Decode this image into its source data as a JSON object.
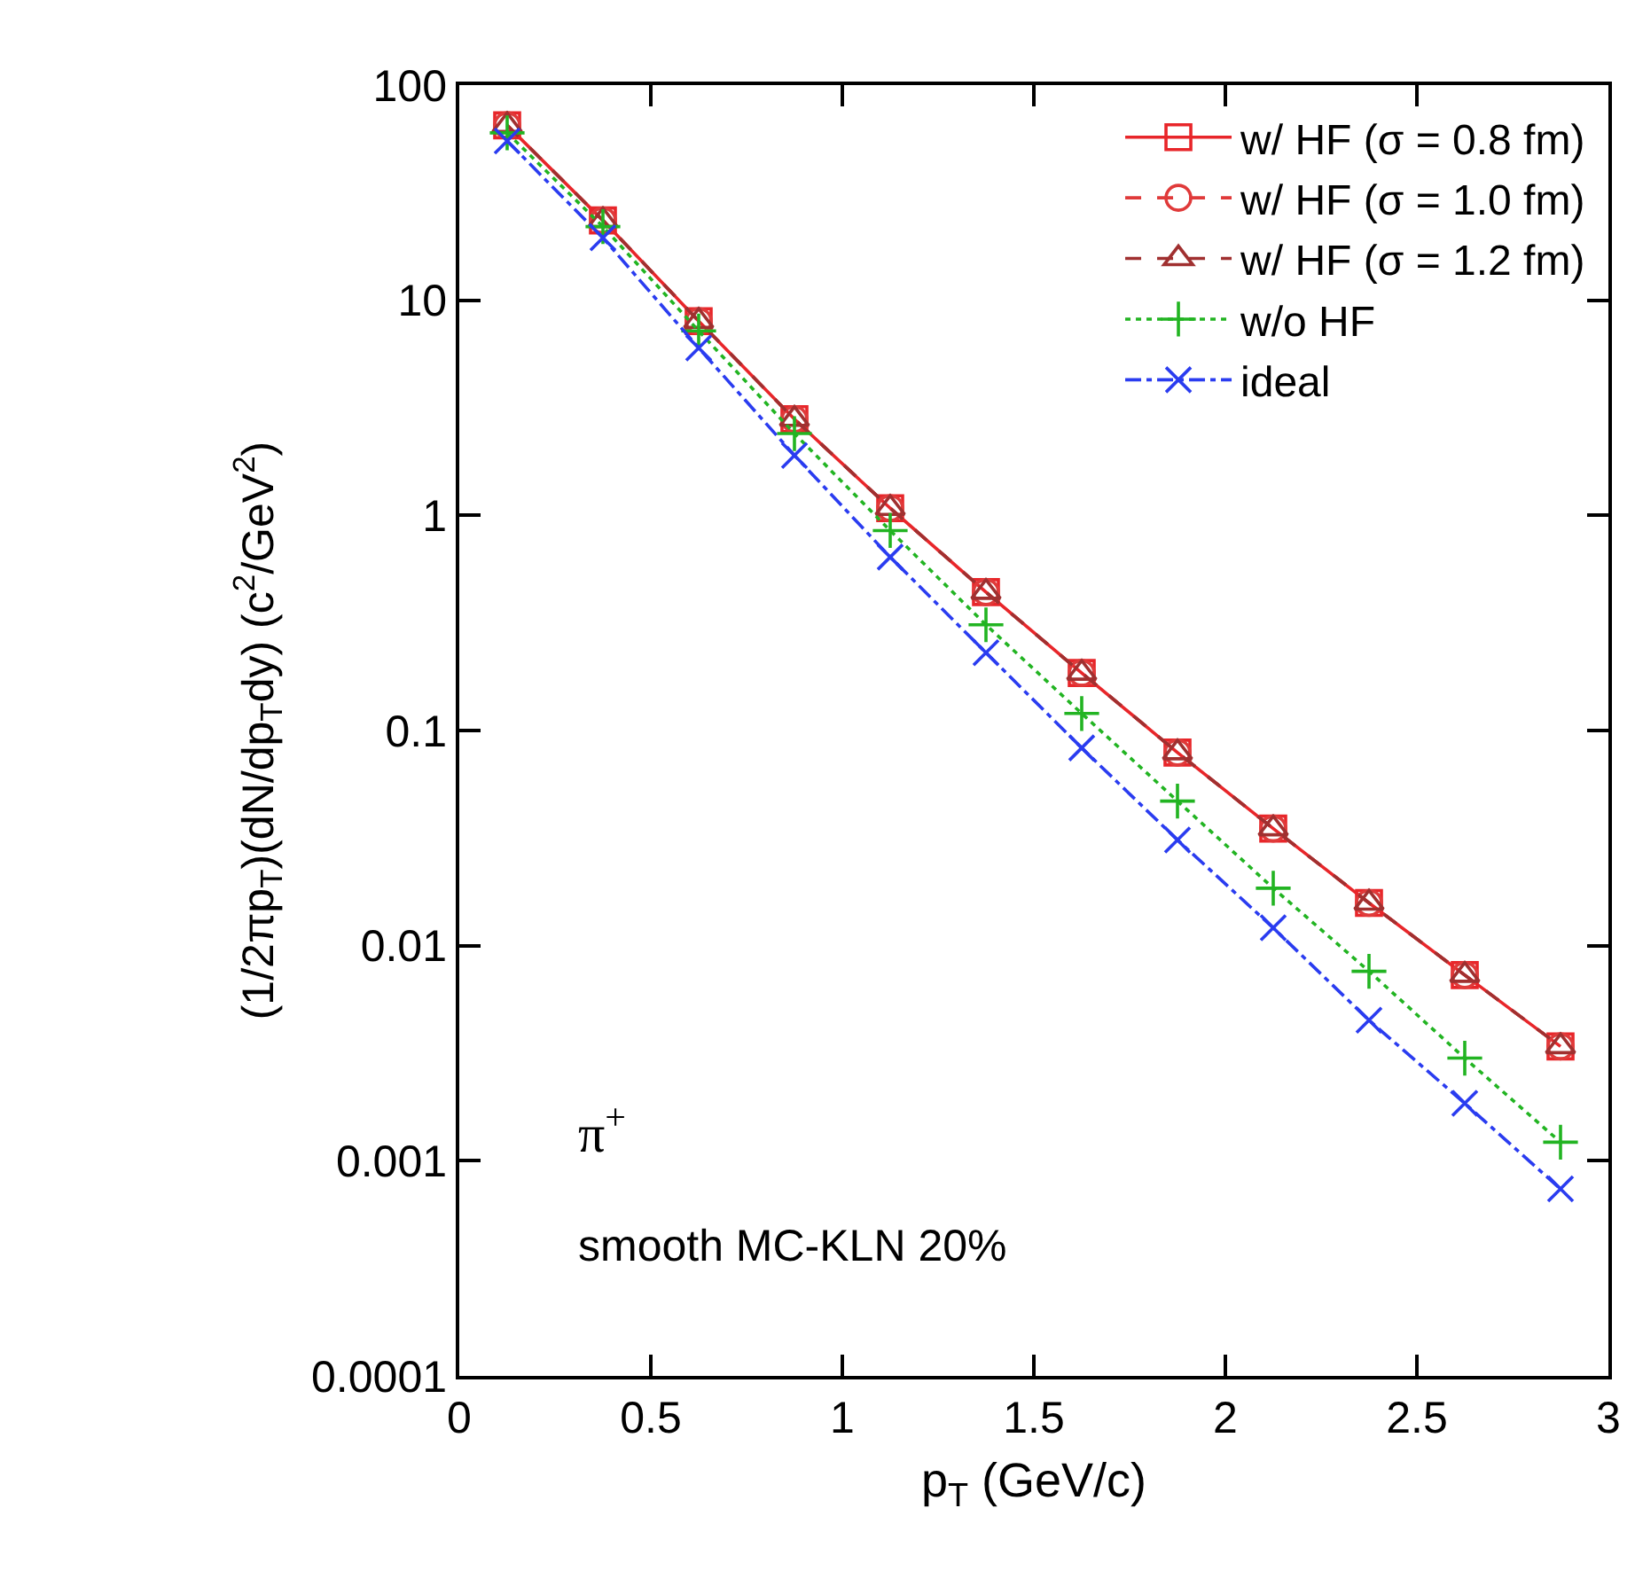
{
  "chart_data": {
    "type": "line",
    "xlabel": "p$_{T}$ (GeV/c)",
    "ylabel": "(1/2πp$_{T}$)(dN/dp$_{T}$dy) (c$^{2}$/GeV$^{2}$)",
    "x": [
      0.125,
      0.375,
      0.625,
      0.875,
      1.125,
      1.375,
      1.625,
      1.875,
      2.125,
      2.375,
      2.625,
      2.875
    ],
    "series": [
      {
        "name": "w/ HF (σ = 0.8 fm)",
        "color": "#e8262a",
        "marker": "square",
        "line_style": "solid",
        "values": [
          65,
          23.5,
          8,
          2.8,
          1.08,
          0.44,
          0.185,
          0.079,
          0.035,
          0.0158,
          0.0073,
          0.0034
        ]
      },
      {
        "name": "w/ HF (σ = 1.0 fm)",
        "color": "#e03a3a",
        "marker": "circle",
        "line_style": "dashed",
        "values": [
          65,
          23.5,
          8,
          2.8,
          1.08,
          0.44,
          0.185,
          0.079,
          0.035,
          0.0158,
          0.0073,
          0.0034
        ]
      },
      {
        "name": "w/ HF (σ = 1.2 fm)",
        "color": "#a03030",
        "marker": "triangle",
        "line_style": "dashed",
        "values": [
          65,
          23.5,
          8,
          2.8,
          1.08,
          0.44,
          0.185,
          0.079,
          0.035,
          0.0158,
          0.0073,
          0.0034
        ]
      },
      {
        "name": "w/o HF",
        "color": "#22b422",
        "marker": "cross",
        "line_style": "dotted",
        "values": [
          60,
          22,
          7.2,
          2.4,
          0.85,
          0.31,
          0.12,
          0.047,
          0.0185,
          0.0076,
          0.003,
          0.00122
        ]
      },
      {
        "name": "ideal",
        "color": "#2a3cf0",
        "marker": "x",
        "line_style": "dashdot",
        "values": [
          55,
          19.5,
          6,
          1.9,
          0.64,
          0.23,
          0.083,
          0.031,
          0.0121,
          0.0045,
          0.00185,
          0.00074
        ]
      }
    ],
    "log": true,
    "grid": false,
    "legend": "top right",
    "xlim": [
      0,
      3
    ],
    "xticks": [
      0,
      0.5,
      1,
      1.5,
      2,
      2.5,
      3
    ],
    "ylim": [
      0.0001,
      100
    ],
    "yticks": [
      0.0001,
      0.001,
      0.01,
      0.1,
      1,
      10,
      100
    ],
    "annotations": [
      "π$^{+}$",
      "smooth MC-KLN 20%"
    ]
  }
}
